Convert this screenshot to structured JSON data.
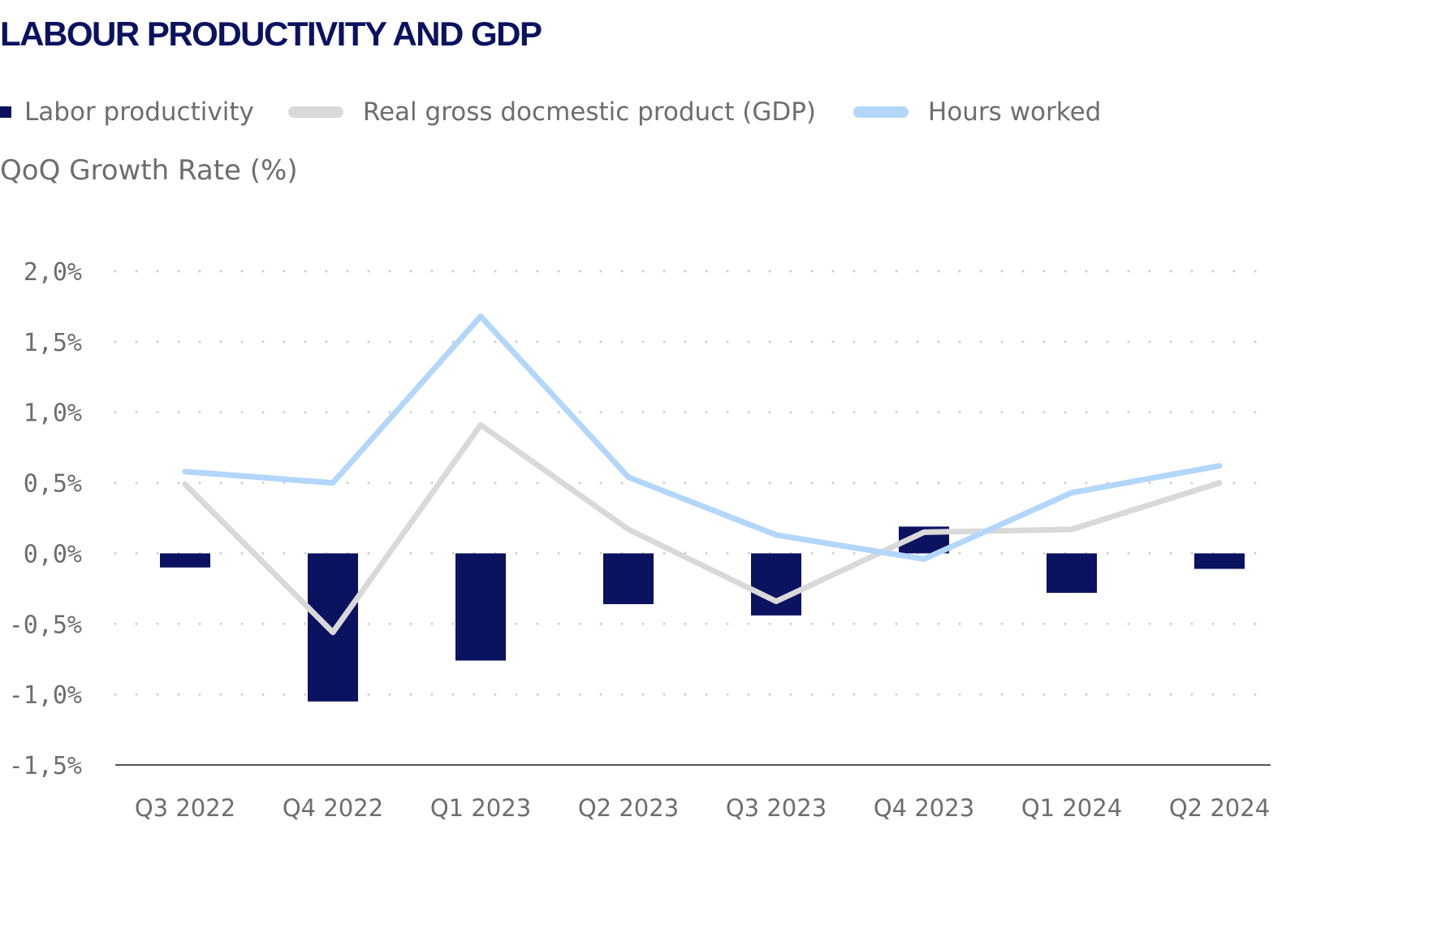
{
  "title": "LABOUR PRODUCTIVITY AND GDP",
  "legend": {
    "productivity": "Labor productivity",
    "gdp": "Real gross docmestic product (GDP)",
    "hours": "Hours worked"
  },
  "y_axis_title": "QoQ Growth Rate (%)",
  "colors": {
    "title": "#0b1260",
    "productivity": "#0b1260",
    "gdp": "#d9d9d9",
    "hours": "#b3d6fb",
    "text": "#6d6d6d",
    "grid": "#cfcfcf",
    "axis": "#555555"
  },
  "chart_data": {
    "type": "bar",
    "title": "LABOUR PRODUCTIVITY AND GDP",
    "ylabel": "QoQ Growth Rate (%)",
    "xlabel": "",
    "categories": [
      "Q3 2022",
      "Q4 2022",
      "Q1 2023",
      "Q2 2023",
      "Q3 2023",
      "Q4 2023",
      "Q1 2024",
      "Q2 2024"
    ],
    "ylim": [
      -1.5,
      2.0
    ],
    "yticks": [
      2.0,
      1.5,
      1.0,
      0.5,
      0.0,
      -0.5,
      -1.0,
      -1.5
    ],
    "ytick_labels": [
      "2,0%",
      "1,5%",
      "1,0%",
      "0,5%",
      "0,0%",
      "-0,5%",
      "-1,0%",
      "-1,5%"
    ],
    "grid": "horizontal dotted",
    "legend_position": "top-left",
    "series": [
      {
        "name": "Labor productivity",
        "type": "bar",
        "values": [
          -0.1,
          -1.05,
          -0.76,
          -0.36,
          -0.44,
          0.19,
          -0.28,
          -0.11
        ]
      },
      {
        "name": "Real gross docmestic product (GDP)",
        "type": "line",
        "values": [
          0.49,
          -0.56,
          0.91,
          0.17,
          -0.34,
          0.15,
          0.17,
          0.5
        ]
      },
      {
        "name": "Hours worked",
        "type": "line",
        "values": [
          0.58,
          0.5,
          1.68,
          0.54,
          0.13,
          -0.04,
          0.43,
          0.62
        ]
      }
    ]
  }
}
